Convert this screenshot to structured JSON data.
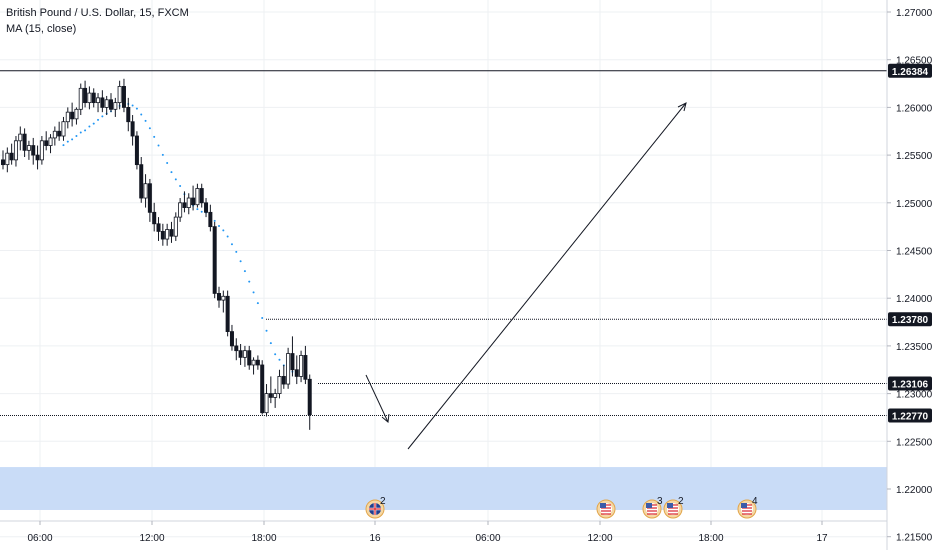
{
  "symbol_title": "British Pound / U.S. Dollar, 15, FXCM",
  "indicator_label": "MA (15, close)",
  "colors": {
    "candle": "#131722",
    "ma_line": "#2196f3",
    "support_zone": "#c9dcf7",
    "grid": "#eef0f3",
    "axis_text": "#131722",
    "price_box_bg": "#131722",
    "price_box_text": "#ffffff"
  },
  "chart_data": {
    "type": "candlestick",
    "x_ticks": [
      "06:00",
      "12:00",
      "18:00",
      "16",
      "06:00",
      "12:00",
      "18:00",
      "17"
    ],
    "y_ticks": [
      "1.27000",
      "1.26500",
      "1.26000",
      "1.25500",
      "1.25000",
      "1.24500",
      "1.24000",
      "1.23500",
      "1.23000",
      "1.22500",
      "1.22000",
      "1.21500"
    ],
    "ylim": [
      1.2135,
      1.2738
    ],
    "support_zone": [
      1.2178,
      1.2223
    ],
    "price_lines": [
      {
        "price": 1.26384,
        "label": "1.26384",
        "style": "solid"
      },
      {
        "price": 1.2378,
        "label": "1.23780",
        "style": "dotted"
      },
      {
        "price": 1.23106,
        "label": "1.23106",
        "style": "dotted"
      },
      {
        "price": 1.2277,
        "label": "1.22770",
        "style": "dotted"
      }
    ],
    "event_markers": [
      {
        "icon": "uk-flag-icon",
        "count": "2"
      },
      {
        "icon": "us-flag-icon",
        "count": ""
      },
      {
        "icon": "us-flag-icon",
        "count": "3"
      },
      {
        "icon": "us-flag-icon",
        "count": "2"
      },
      {
        "icon": "us-flag-icon",
        "count": "4"
      }
    ],
    "candles": [
      [
        1.2545,
        1.2555,
        1.2535,
        1.254
      ],
      [
        1.254,
        1.2558,
        1.2532,
        1.2552
      ],
      [
        1.2552,
        1.2562,
        1.254,
        1.2545
      ],
      [
        1.2545,
        1.257,
        1.2538,
        1.2565
      ],
      [
        1.2565,
        1.258,
        1.2555,
        1.2572
      ],
      [
        1.2572,
        1.2578,
        1.2548,
        1.2555
      ],
      [
        1.2555,
        1.2565,
        1.2545,
        1.256
      ],
      [
        1.256,
        1.2568,
        1.254,
        1.255
      ],
      [
        1.255,
        1.256,
        1.2535,
        1.2545
      ],
      [
        1.2545,
        1.257,
        1.254,
        1.2565
      ],
      [
        1.2565,
        1.2575,
        1.2555,
        1.256
      ],
      [
        1.256,
        1.2572,
        1.2552,
        1.2568
      ],
      [
        1.2568,
        1.258,
        1.256,
        1.2575
      ],
      [
        1.2575,
        1.2585,
        1.2565,
        1.257
      ],
      [
        1.257,
        1.259,
        1.2565,
        1.2585
      ],
      [
        1.2585,
        1.26,
        1.2578,
        1.2595
      ],
      [
        1.2595,
        1.2605,
        1.258,
        1.2588
      ],
      [
        1.2588,
        1.26,
        1.2582,
        1.2598
      ],
      [
        1.2598,
        1.2625,
        1.2592,
        1.262
      ],
      [
        1.262,
        1.2628,
        1.26,
        1.2605
      ],
      [
        1.2605,
        1.2622,
        1.2598,
        1.2615
      ],
      [
        1.2615,
        1.262,
        1.26,
        1.2605
      ],
      [
        1.2605,
        1.2615,
        1.2595,
        1.261
      ],
      [
        1.261,
        1.2618,
        1.2595,
        1.26
      ],
      [
        1.26,
        1.2612,
        1.2592,
        1.2608
      ],
      [
        1.2608,
        1.2615,
        1.2595,
        1.2598
      ],
      [
        1.2598,
        1.261,
        1.259,
        1.2605
      ],
      [
        1.2605,
        1.2628,
        1.2598,
        1.2622
      ],
      [
        1.2622,
        1.263,
        1.2595,
        1.26
      ],
      [
        1.26,
        1.261,
        1.2575,
        1.2585
      ],
      [
        1.2585,
        1.2592,
        1.256,
        1.257
      ],
      [
        1.257,
        1.2575,
        1.2535,
        1.254
      ],
      [
        1.254,
        1.2548,
        1.25,
        1.2505
      ],
      [
        1.2505,
        1.253,
        1.2495,
        1.252
      ],
      [
        1.252,
        1.2525,
        1.248,
        1.249
      ],
      [
        1.249,
        1.25,
        1.247,
        1.2478
      ],
      [
        1.2478,
        1.2485,
        1.246,
        1.247
      ],
      [
        1.247,
        1.2478,
        1.2455,
        1.2462
      ],
      [
        1.2462,
        1.2478,
        1.2455,
        1.2472
      ],
      [
        1.2472,
        1.248,
        1.2458,
        1.2465
      ],
      [
        1.2465,
        1.249,
        1.246,
        1.2485
      ],
      [
        1.2485,
        1.2505,
        1.248,
        1.25
      ],
      [
        1.25,
        1.2512,
        1.249,
        1.2495
      ],
      [
        1.2495,
        1.251,
        1.2488,
        1.2505
      ],
      [
        1.2505,
        1.2518,
        1.2492,
        1.2498
      ],
      [
        1.2498,
        1.252,
        1.2495,
        1.2515
      ],
      [
        1.2515,
        1.252,
        1.2495,
        1.25
      ],
      [
        1.25,
        1.2505,
        1.2485,
        1.249
      ],
      [
        1.249,
        1.2498,
        1.247,
        1.2475
      ],
      [
        1.2475,
        1.248,
        1.24,
        1.2405
      ],
      [
        1.2405,
        1.2412,
        1.239,
        1.2398
      ],
      [
        1.2398,
        1.2408,
        1.2385,
        1.2402
      ],
      [
        1.2402,
        1.2408,
        1.236,
        1.2365
      ],
      [
        1.2365,
        1.2372,
        1.2345,
        1.235
      ],
      [
        1.235,
        1.2358,
        1.2335,
        1.2345
      ],
      [
        1.2345,
        1.2352,
        1.233,
        1.2338
      ],
      [
        1.2338,
        1.235,
        1.2328,
        1.2345
      ],
      [
        1.2345,
        1.235,
        1.2325,
        1.233
      ],
      [
        1.233,
        1.2338,
        1.232,
        1.2335
      ],
      [
        1.2335,
        1.234,
        1.2325,
        1.233
      ],
      [
        1.233,
        1.2335,
        1.2278,
        1.228
      ],
      [
        1.228,
        1.231,
        1.2276,
        1.23
      ],
      [
        1.23,
        1.2318,
        1.229,
        1.2296
      ],
      [
        1.2296,
        1.2305,
        1.2285,
        1.23
      ],
      [
        1.23,
        1.2325,
        1.2295,
        1.2318
      ],
      [
        1.2318,
        1.233,
        1.2305,
        1.231
      ],
      [
        1.231,
        1.2348,
        1.2305,
        1.2342
      ],
      [
        1.2342,
        1.236,
        1.2318,
        1.2325
      ],
      [
        1.2325,
        1.234,
        1.231,
        1.2318
      ],
      [
        1.2318,
        1.2345,
        1.2312,
        1.234
      ],
      [
        1.234,
        1.235,
        1.231,
        1.2315
      ],
      [
        1.2315,
        1.232,
        1.2262,
        1.2278
      ]
    ]
  }
}
